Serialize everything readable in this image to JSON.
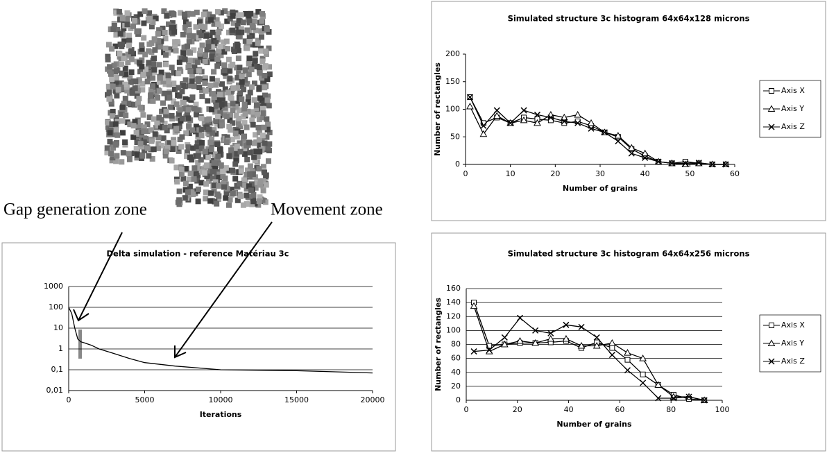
{
  "chart_data": [
    {
      "type": "line",
      "title": "Simulated structure 3c histogram 64x64x128 microns",
      "x_label": "Number of grains",
      "y_label": "Number of rectangles",
      "x": [
        1,
        4,
        7,
        10,
        13,
        16,
        19,
        22,
        25,
        28,
        31,
        34,
        37,
        40,
        43,
        46,
        49,
        52,
        55,
        58
      ],
      "series": [
        {
          "name": "Axis X",
          "color": "#000000",
          "marker": "square",
          "values": [
            122,
            75,
            85,
            75,
            85,
            82,
            80,
            75,
            78,
            70,
            58,
            50,
            28,
            15,
            5,
            2,
            5,
            2,
            0,
            0
          ]
        },
        {
          "name": "Axis Y",
          "color": "#000000",
          "marker": "triangle",
          "values": [
            105,
            55,
            88,
            75,
            80,
            75,
            90,
            85,
            90,
            75,
            58,
            52,
            30,
            20,
            5,
            2,
            0,
            2,
            0,
            0
          ]
        },
        {
          "name": "Axis Z",
          "color": "#000000",
          "marker": "x",
          "values": [
            122,
            70,
            98,
            75,
            98,
            90,
            85,
            78,
            75,
            65,
            58,
            42,
            20,
            12,
            5,
            2,
            2,
            3,
            0,
            0
          ]
        }
      ],
      "xlim": [
        0,
        60
      ],
      "xticks": [
        0,
        10,
        20,
        30,
        40,
        50,
        60
      ],
      "ylim": [
        0,
        200
      ],
      "yticks": [
        0,
        50,
        100,
        150,
        200
      ],
      "grid": false,
      "legend": "right"
    },
    {
      "type": "line",
      "title": "Simulated structure 3c histogram 64x64x256 microns",
      "x_label": "Number of grains",
      "y_label": "Number of rectangles",
      "x": [
        3,
        9,
        15,
        21,
        27,
        33,
        39,
        45,
        51,
        57,
        63,
        69,
        75,
        81,
        87,
        93
      ],
      "series": [
        {
          "name": "Axis X",
          "color": "#000000",
          "marker": "square",
          "values": [
            140,
            78,
            80,
            82,
            82,
            83,
            85,
            75,
            83,
            75,
            58,
            37,
            22,
            8,
            2,
            0
          ]
        },
        {
          "name": "Axis Y",
          "color": "#000000",
          "marker": "triangle",
          "values": [
            135,
            70,
            80,
            85,
            82,
            88,
            88,
            78,
            78,
            82,
            68,
            60,
            22,
            5,
            5,
            0
          ]
        },
        {
          "name": "Axis Z",
          "color": "#000000",
          "marker": "x",
          "values": [
            70,
            72,
            90,
            118,
            100,
            96,
            108,
            105,
            90,
            65,
            43,
            25,
            3,
            3,
            5,
            0
          ]
        }
      ],
      "xlim": [
        0,
        100
      ],
      "xticks": [
        0,
        20,
        40,
        60,
        80,
        100
      ],
      "ylim": [
        0,
        160
      ],
      "yticks": [
        0,
        20,
        40,
        60,
        80,
        100,
        120,
        140,
        160
      ],
      "grid": true,
      "legend": "right"
    },
    {
      "type": "line",
      "title": "Delta simulation - reference  Matériau 3c",
      "x_label": "Iterations",
      "x": [
        0,
        200,
        400,
        600,
        800,
        1000,
        1500,
        2000,
        3000,
        4000,
        5000,
        7000,
        10000,
        15000,
        20000
      ],
      "values": [
        100,
        50,
        10,
        3,
        2.2,
        2,
        1.5,
        1,
        0.6,
        0.35,
        0.22,
        0.15,
        0.1,
        0.09,
        0.07
      ],
      "color": "#000000",
      "xlim": [
        0,
        20000
      ],
      "xticks": [
        0,
        5000,
        10000,
        15000,
        20000
      ],
      "ylim": [
        0.01,
        1000
      ],
      "yticks": [
        {
          "value": 0.01,
          "label": "0,01"
        },
        {
          "value": 0.1,
          "label": "0,1"
        },
        1,
        10,
        100,
        1000
      ],
      "log_y": true,
      "grid": true,
      "annotations": [
        "Gap generation zone",
        "Movement zone"
      ]
    }
  ]
}
